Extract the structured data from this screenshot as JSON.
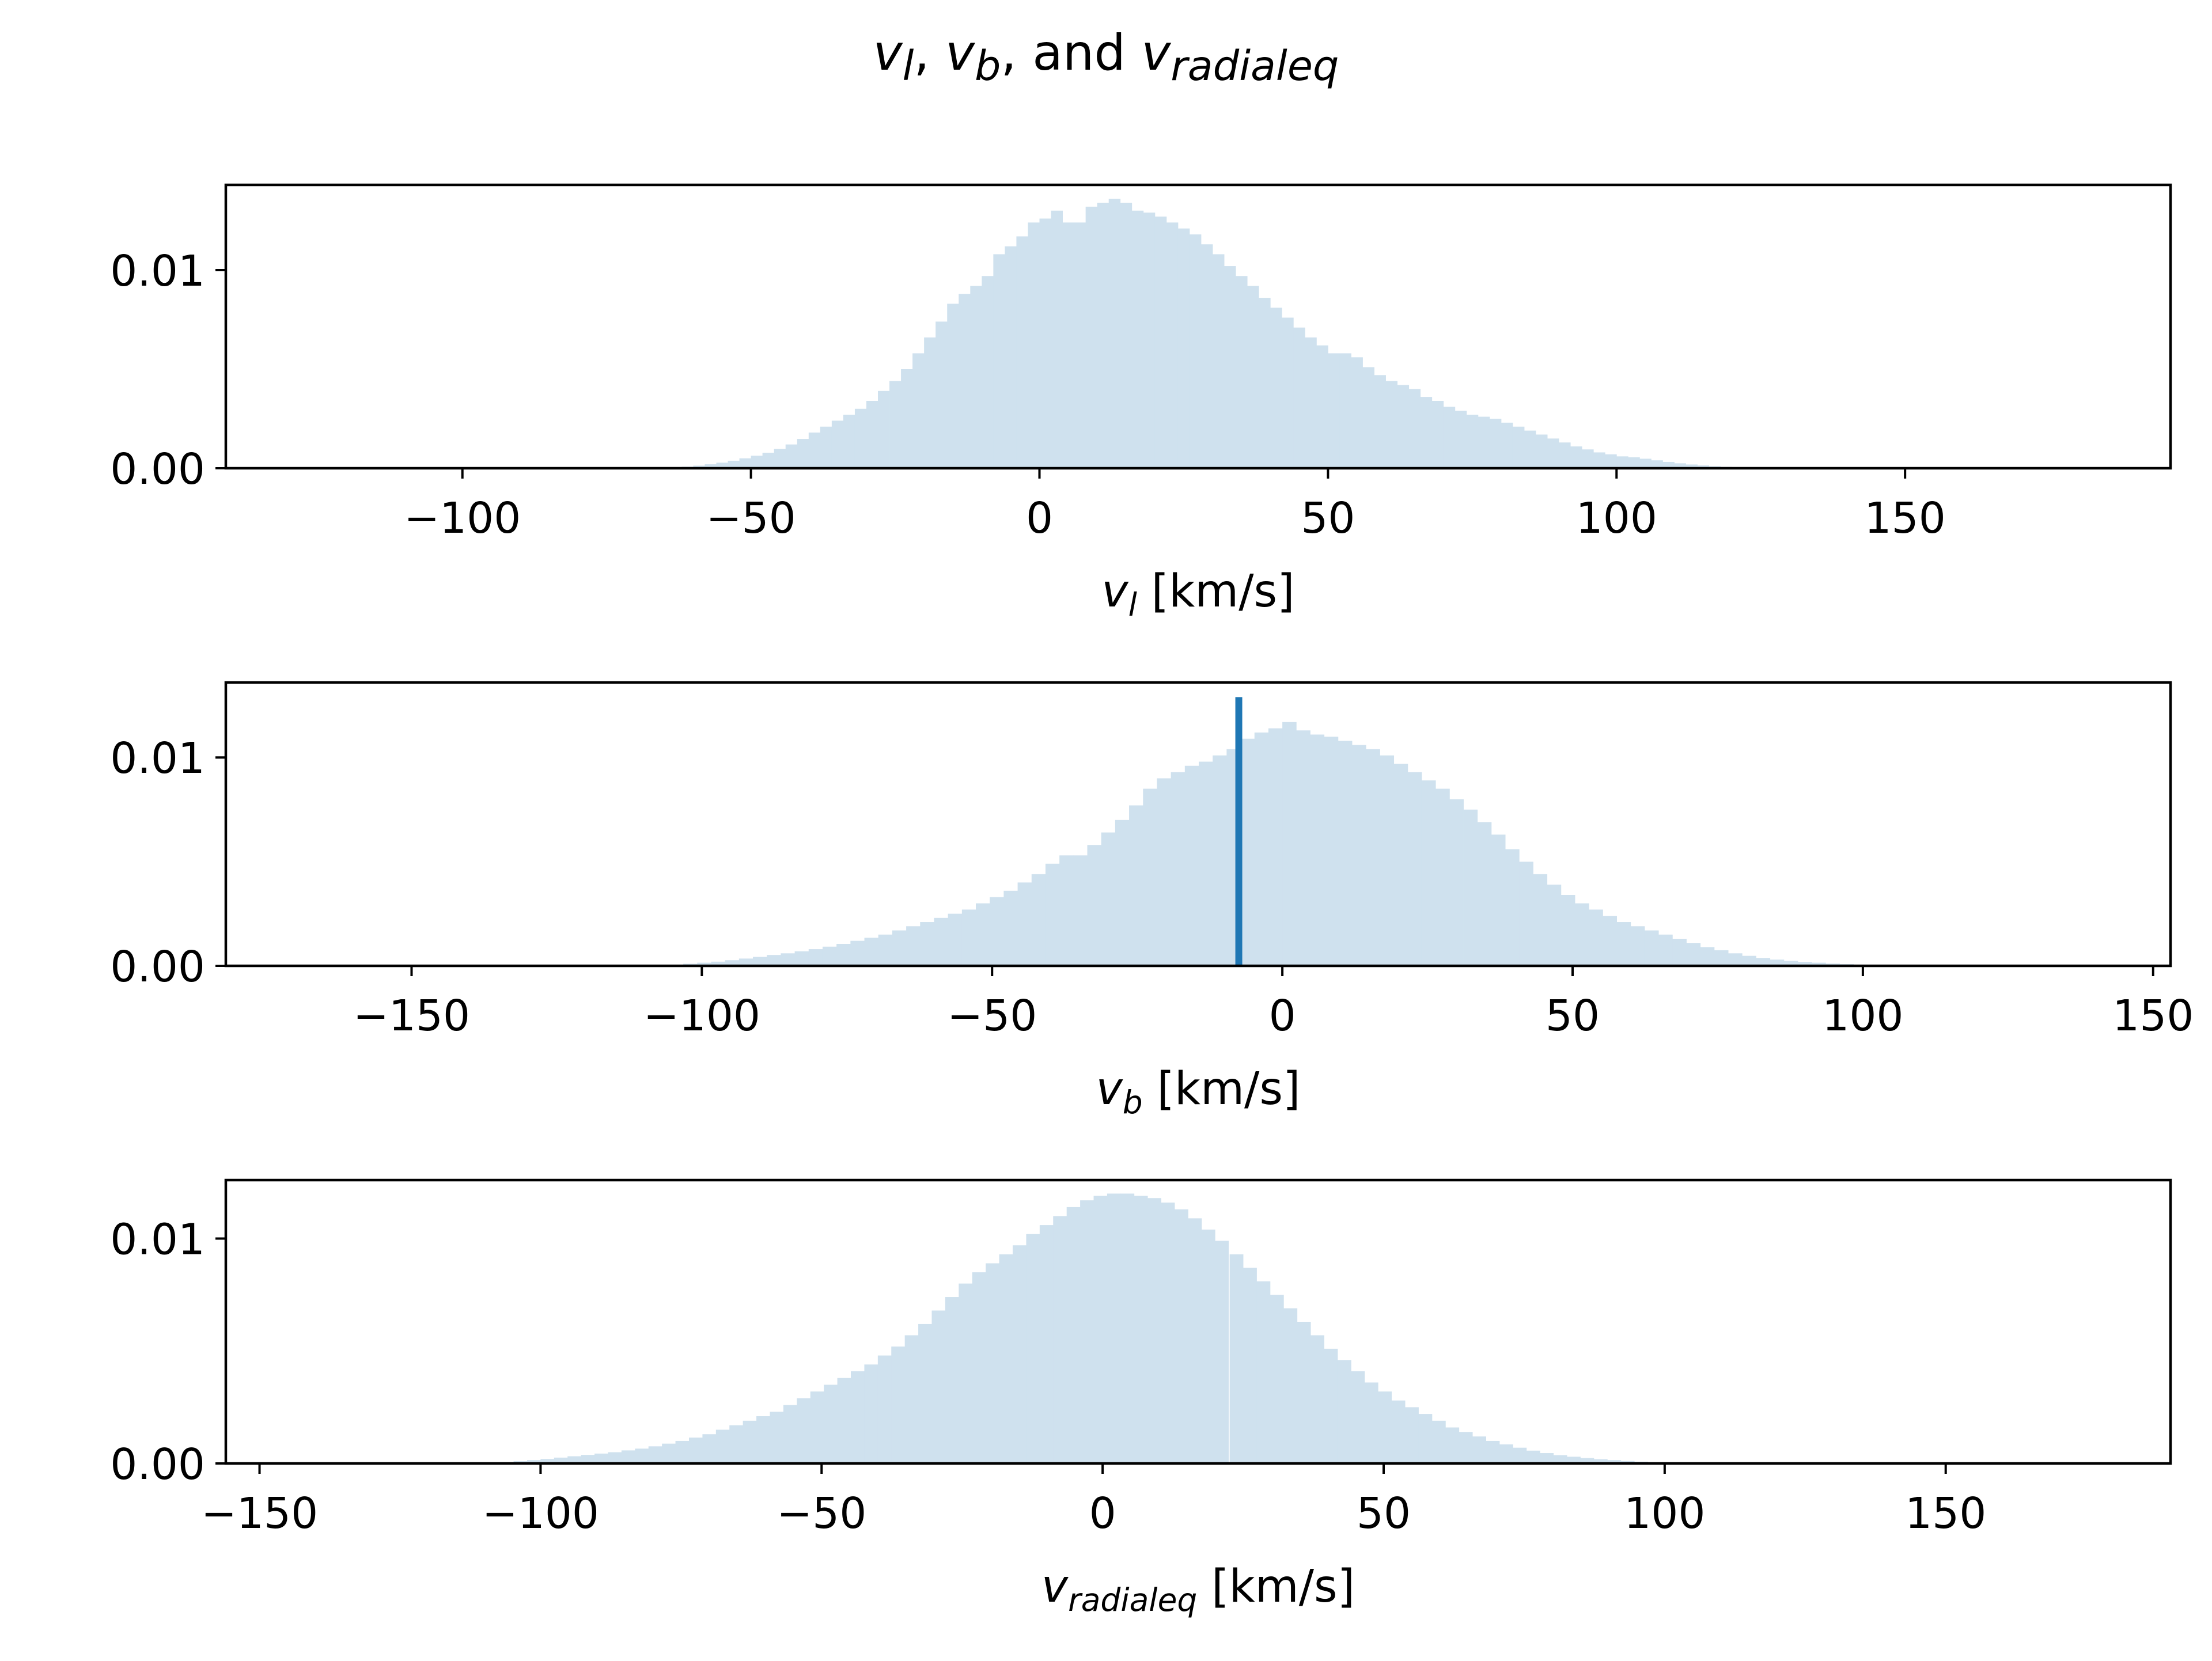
{
  "figure": {
    "title": {
      "main": "v",
      "sub1": "l",
      "sep1": ", ",
      "main2": "v",
      "sub2": "b",
      "sep2": ", and ",
      "main3": "v",
      "sub3": "radialeq"
    }
  },
  "chart_data": [
    {
      "type": "bar",
      "name": "panel-vl",
      "xlabel": {
        "sym": "v",
        "sub": "l",
        "unit": " [km/s]"
      },
      "ylabel": "",
      "xlim": [
        -141,
        196
      ],
      "ylim": [
        0,
        0.0143
      ],
      "xticks": [
        -100,
        -50,
        0,
        50,
        100,
        150
      ],
      "xtick_labels": [
        "−100",
        "−50",
        "0",
        "50",
        "100",
        "150"
      ],
      "yticks": [
        0.0,
        0.01
      ],
      "ytick_labels": [
        "0.00",
        "0.01"
      ],
      "bar_color": "#cfe1ee",
      "bin_width": 2,
      "bins_start": -70,
      "bins_end": 130,
      "histogram": [
        [
          -70,
          1e-05
        ],
        [
          -68,
          2e-05
        ],
        [
          -66,
          3e-05
        ],
        [
          -64,
          5e-05
        ],
        [
          -62,
          8e-05
        ],
        [
          -60,
          0.00013
        ],
        [
          -58,
          0.0002
        ],
        [
          -56,
          0.00028
        ],
        [
          -54,
          0.00038
        ],
        [
          -52,
          0.0005
        ],
        [
          -50,
          0.00063
        ],
        [
          -48,
          0.00078
        ],
        [
          -46,
          0.00097
        ],
        [
          -44,
          0.0012
        ],
        [
          -42,
          0.00148
        ],
        [
          -40,
          0.0018
        ],
        [
          -38,
          0.0021
        ],
        [
          -36,
          0.0024
        ],
        [
          -34,
          0.0027
        ],
        [
          -32,
          0.003
        ],
        [
          -30,
          0.0034
        ],
        [
          -28,
          0.0039
        ],
        [
          -26,
          0.0044
        ],
        [
          -24,
          0.005
        ],
        [
          -22,
          0.0058
        ],
        [
          -20,
          0.0066
        ],
        [
          -18,
          0.0074
        ],
        [
          -16,
          0.0083
        ],
        [
          -14,
          0.0088
        ],
        [
          -12,
          0.0092
        ],
        [
          -10,
          0.0097
        ],
        [
          -8,
          0.0108
        ],
        [
          -6,
          0.0112
        ],
        [
          -4,
          0.0117
        ],
        [
          -2,
          0.0124
        ],
        [
          0,
          0.0126
        ],
        [
          2,
          0.013
        ],
        [
          4,
          0.0124
        ],
        [
          6,
          0.0124
        ],
        [
          8,
          0.0132
        ],
        [
          10,
          0.0134
        ],
        [
          12,
          0.0136
        ],
        [
          14,
          0.0134
        ],
        [
          16,
          0.013
        ],
        [
          18,
          0.0129
        ],
        [
          20,
          0.0127
        ],
        [
          22,
          0.0124
        ],
        [
          24,
          0.0121
        ],
        [
          26,
          0.0118
        ],
        [
          28,
          0.0113
        ],
        [
          30,
          0.0108
        ],
        [
          32,
          0.0102
        ],
        [
          34,
          0.0097
        ],
        [
          36,
          0.0092
        ],
        [
          38,
          0.0086
        ],
        [
          40,
          0.0081
        ],
        [
          42,
          0.0076
        ],
        [
          44,
          0.0071
        ],
        [
          46,
          0.0066
        ],
        [
          48,
          0.0062
        ],
        [
          50,
          0.0058
        ],
        [
          52,
          0.0058
        ],
        [
          54,
          0.0056
        ],
        [
          56,
          0.0051
        ],
        [
          58,
          0.0047
        ],
        [
          60,
          0.0044
        ],
        [
          62,
          0.0042
        ],
        [
          64,
          0.004
        ],
        [
          66,
          0.0036
        ],
        [
          68,
          0.0034
        ],
        [
          70,
          0.0031
        ],
        [
          72,
          0.0029
        ],
        [
          74,
          0.0027
        ],
        [
          76,
          0.0026
        ],
        [
          78,
          0.0025
        ],
        [
          80,
          0.0023
        ],
        [
          82,
          0.0021
        ],
        [
          84,
          0.0019
        ],
        [
          86,
          0.0017
        ],
        [
          88,
          0.0015
        ],
        [
          90,
          0.0013
        ],
        [
          92,
          0.0011
        ],
        [
          94,
          0.00095
        ],
        [
          96,
          0.0008
        ],
        [
          98,
          0.0007
        ],
        [
          100,
          0.0006
        ],
        [
          102,
          0.00055
        ],
        [
          104,
          0.00048
        ],
        [
          106,
          0.0004
        ],
        [
          108,
          0.00032
        ],
        [
          110,
          0.00025
        ],
        [
          112,
          0.00019
        ],
        [
          114,
          0.00014
        ],
        [
          116,
          0.0001
        ],
        [
          118,
          7e-05
        ],
        [
          120,
          5e-05
        ],
        [
          122,
          3e-05
        ],
        [
          124,
          2e-05
        ],
        [
          126,
          1e-05
        ],
        [
          128,
          1e-05
        ]
      ]
    },
    {
      "type": "bar",
      "name": "panel-vb",
      "xlabel": {
        "sym": "v",
        "sub": "b",
        "unit": " [km/s]"
      },
      "ylabel": "",
      "xlim": [
        -182,
        153
      ],
      "ylim": [
        0,
        0.0136
      ],
      "xticks": [
        -150,
        -100,
        -50,
        0,
        50,
        100,
        150
      ],
      "xtick_labels": [
        "−150",
        "−100",
        "−50",
        "0",
        "50",
        "100",
        "150"
      ],
      "yticks": [
        0.0,
        0.01
      ],
      "ytick_labels": [
        "0.00",
        "0.01"
      ],
      "bar_color": "#cfe1ee",
      "vline": {
        "x": -7.5,
        "ymax": 0.0129,
        "color": "#1f77b4"
      },
      "bin_width": 2.4,
      "histogram": [
        [
          -108,
          2e-05
        ],
        [
          -105.6,
          5e-05
        ],
        [
          -103.2,
          0.0001
        ],
        [
          -100.8,
          0.00015
        ],
        [
          -98.4,
          0.0002
        ],
        [
          -96,
          0.00027
        ],
        [
          -93.6,
          0.00035
        ],
        [
          -91.2,
          0.00043
        ],
        [
          -88.8,
          0.00052
        ],
        [
          -86.4,
          0.0006
        ],
        [
          -84,
          0.0007
        ],
        [
          -81.6,
          0.0008
        ],
        [
          -79.2,
          0.00092
        ],
        [
          -76.8,
          0.00105
        ],
        [
          -74.4,
          0.0012
        ],
        [
          -72,
          0.00135
        ],
        [
          -69.6,
          0.0015
        ],
        [
          -67.2,
          0.0017
        ],
        [
          -64.8,
          0.0019
        ],
        [
          -62.4,
          0.0021
        ],
        [
          -60,
          0.0023
        ],
        [
          -57.6,
          0.0025
        ],
        [
          -55.2,
          0.0027
        ],
        [
          -52.8,
          0.003
        ],
        [
          -50.4,
          0.0033
        ],
        [
          -48,
          0.0036
        ],
        [
          -45.6,
          0.004
        ],
        [
          -43.2,
          0.0044
        ],
        [
          -40.8,
          0.0049
        ],
        [
          -38.4,
          0.0053
        ],
        [
          -36,
          0.0053
        ],
        [
          -33.6,
          0.0058
        ],
        [
          -31.2,
          0.0064
        ],
        [
          -28.8,
          0.007
        ],
        [
          -26.4,
          0.0077
        ],
        [
          -24,
          0.0085
        ],
        [
          -21.6,
          0.009
        ],
        [
          -19.2,
          0.0093
        ],
        [
          -16.8,
          0.0096
        ],
        [
          -14.4,
          0.0098
        ],
        [
          -12,
          0.0101
        ],
        [
          -9.6,
          0.0104
        ],
        [
          -7.2,
          0.0109
        ],
        [
          -4.8,
          0.0112
        ],
        [
          -2.4,
          0.0114
        ],
        [
          0,
          0.0117
        ],
        [
          2.4,
          0.0113
        ],
        [
          4.8,
          0.0111
        ],
        [
          7.2,
          0.011
        ],
        [
          9.6,
          0.0108
        ],
        [
          12,
          0.0106
        ],
        [
          14.4,
          0.0104
        ],
        [
          16.8,
          0.0101
        ],
        [
          19.2,
          0.0097
        ],
        [
          21.6,
          0.0093
        ],
        [
          24,
          0.0089
        ],
        [
          26.4,
          0.0085
        ],
        [
          28.8,
          0.008
        ],
        [
          31.2,
          0.0075
        ],
        [
          33.6,
          0.0069
        ],
        [
          36,
          0.0063
        ],
        [
          38.4,
          0.0056
        ],
        [
          40.8,
          0.005
        ],
        [
          43.2,
          0.0044
        ],
        [
          45.6,
          0.0039
        ],
        [
          48,
          0.0034
        ],
        [
          50.4,
          0.003
        ],
        [
          52.8,
          0.0027
        ],
        [
          55.2,
          0.0024
        ],
        [
          57.6,
          0.0021
        ],
        [
          60,
          0.0019
        ],
        [
          62.4,
          0.0017
        ],
        [
          64.8,
          0.0015
        ],
        [
          67.2,
          0.0013
        ],
        [
          69.6,
          0.0011
        ],
        [
          72,
          0.0009
        ],
        [
          74.4,
          0.00075
        ],
        [
          76.8,
          0.0006
        ],
        [
          79.2,
          0.00048
        ],
        [
          81.6,
          0.00038
        ],
        [
          84,
          0.0003
        ],
        [
          86.4,
          0.00024
        ],
        [
          88.8,
          0.00019
        ],
        [
          91.2,
          0.00015
        ],
        [
          93.6,
          0.00011
        ],
        [
          96,
          8e-05
        ],
        [
          98.4,
          5e-05
        ],
        [
          100.8,
          3e-05
        ]
      ]
    },
    {
      "type": "bar",
      "name": "panel-vradialeq",
      "xlabel": {
        "sym": "v",
        "sub": "radialeq",
        "unit": " [km/s]"
      },
      "ylabel": "",
      "xlim": [
        -156,
        190
      ],
      "ylim": [
        0,
        0.0126
      ],
      "xticks": [
        -150,
        -100,
        -50,
        0,
        50,
        100,
        150
      ],
      "xtick_labels": [
        "−150",
        "−100",
        "−50",
        "0",
        "50",
        "100",
        "150"
      ],
      "yticks": [
        0.0,
        0.01
      ],
      "ytick_labels": [
        "0.00",
        "0.01"
      ],
      "bar_color": "#cfe1ee",
      "bin_width": 2.4,
      "histogram": [
        [
          -112,
          1e-05
        ],
        [
          -109.6,
          3e-05
        ],
        [
          -107.2,
          6e-05
        ],
        [
          -104.8,
          0.0001
        ],
        [
          -102.4,
          0.00015
        ],
        [
          -100,
          0.0002
        ],
        [
          -97.6,
          0.00026
        ],
        [
          -95.2,
          0.00032
        ],
        [
          -92.8,
          0.00038
        ],
        [
          -90.4,
          0.00044
        ],
        [
          -88,
          0.0005
        ],
        [
          -85.6,
          0.00058
        ],
        [
          -83.2,
          0.00066
        ],
        [
          -80.8,
          0.00076
        ],
        [
          -78.4,
          0.00088
        ],
        [
          -76,
          0.001
        ],
        [
          -73.6,
          0.00115
        ],
        [
          -71.2,
          0.0013
        ],
        [
          -68.8,
          0.0015
        ],
        [
          -66.4,
          0.0017
        ],
        [
          -64,
          0.0019
        ],
        [
          -61.6,
          0.0021
        ],
        [
          -59.2,
          0.0023
        ],
        [
          -56.8,
          0.0026
        ],
        [
          -54.4,
          0.0029
        ],
        [
          -52,
          0.0032
        ],
        [
          -49.6,
          0.0035
        ],
        [
          -47.2,
          0.0038
        ],
        [
          -44.8,
          0.0041
        ],
        [
          -42.4,
          0.0044
        ],
        [
          -40,
          0.0048
        ],
        [
          -37.6,
          0.0052
        ],
        [
          -35.2,
          0.0057
        ],
        [
          -32.8,
          0.0062
        ],
        [
          -30.4,
          0.0068
        ],
        [
          -28,
          0.0074
        ],
        [
          -25.6,
          0.008
        ],
        [
          -23.2,
          0.0085
        ],
        [
          -20.8,
          0.0089
        ],
        [
          -18.4,
          0.0093
        ],
        [
          -16,
          0.0097
        ],
        [
          -13.6,
          0.0102
        ],
        [
          -11.2,
          0.0106
        ],
        [
          -8.8,
          0.011
        ],
        [
          -6.4,
          0.0114
        ],
        [
          -4,
          0.0117
        ],
        [
          -1.6,
          0.0119
        ],
        [
          0.8,
          0.012
        ],
        [
          3.2,
          0.012
        ],
        [
          5.6,
          0.0119
        ],
        [
          8,
          0.0118
        ],
        [
          10.4,
          0.0116
        ],
        [
          12.8,
          0.0113
        ],
        [
          15.2,
          0.0109
        ],
        [
          17.6,
          0.0104
        ],
        [
          20,
          0.0099
        ],
        [
          22.6,
          0.0093
        ],
        [
          25,
          0.0087
        ],
        [
          27.4,
          0.0081
        ],
        [
          29.8,
          0.0075
        ],
        [
          32.2,
          0.0069
        ],
        [
          34.6,
          0.0063
        ],
        [
          37,
          0.0057
        ],
        [
          39.4,
          0.0051
        ],
        [
          41.8,
          0.0046
        ],
        [
          44.2,
          0.0041
        ],
        [
          46.6,
          0.0036
        ],
        [
          49,
          0.0032
        ],
        [
          51.4,
          0.0028
        ],
        [
          53.8,
          0.0025
        ],
        [
          56.2,
          0.0022
        ],
        [
          58.6,
          0.0019
        ],
        [
          61,
          0.0016
        ],
        [
          63.4,
          0.0014
        ],
        [
          65.8,
          0.0012
        ],
        [
          68.2,
          0.001
        ],
        [
          70.6,
          0.00085
        ],
        [
          73,
          0.0007
        ],
        [
          75.4,
          0.00057
        ],
        [
          77.8,
          0.00046
        ],
        [
          80.2,
          0.00037
        ],
        [
          82.6,
          0.0003
        ],
        [
          85,
          0.00024
        ],
        [
          87.4,
          0.00019
        ],
        [
          89.8,
          0.00015
        ],
        [
          92.2,
          0.00011
        ],
        [
          94.6,
          8e-05
        ],
        [
          97,
          5e-05
        ],
        [
          99.4,
          3e-05
        ],
        [
          101.8,
          2e-05
        ]
      ]
    }
  ]
}
